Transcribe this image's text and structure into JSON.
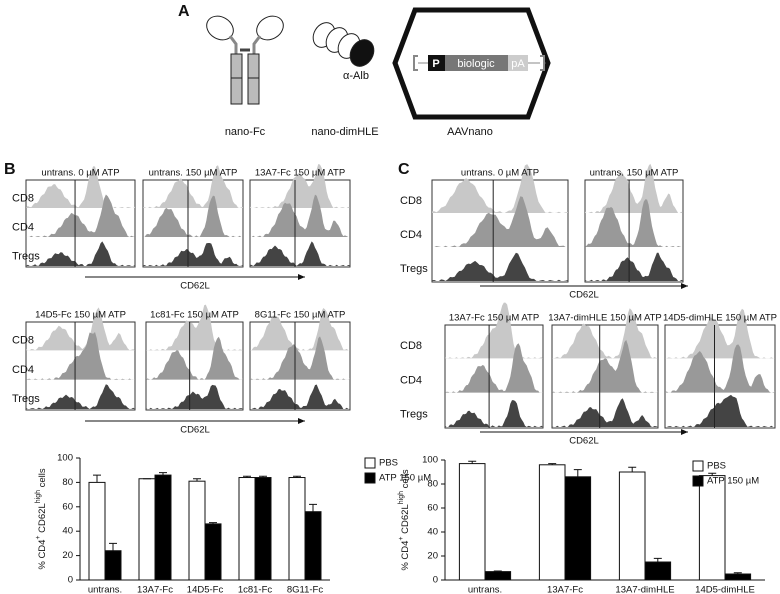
{
  "figure": {
    "panel_a": {
      "label": "A",
      "constructs": [
        "nano-Fc",
        "nano-dimHLE",
        "AAVnano"
      ],
      "alb": "α-Alb",
      "cassette": [
        "P",
        "biologic",
        "pA"
      ]
    },
    "panel_b": {
      "label": "B",
      "rows": [
        "CD8",
        "CD4",
        "Tregs"
      ],
      "marker": "CD62L",
      "histograms": [
        "untrans. 0 µM ATP",
        "untrans. 150 µM ATP",
        "13A7-Fc 150 µM ATP",
        "14D5-Fc 150 µM ATP",
        "1c81-Fc 150 µM ATP",
        "8G11-Fc 150 µM ATP"
      ]
    },
    "panel_c": {
      "label": "C",
      "rows": [
        "CD8",
        "CD4",
        "Tregs"
      ],
      "marker": "CD62L",
      "histograms": [
        "untrans. 0 µM ATP",
        "untrans. 150 µM ATP",
        "13A7-Fc 150 µM ATP",
        "13A7-dimHLE 150 µM ATP",
        "14D5-dimHLE 150 µM ATP"
      ]
    }
  },
  "chart_data": [
    {
      "type": "bar",
      "ylabel": [
        "% CD4",
        "+",
        " CD62L",
        "high",
        " cells"
      ],
      "categories": [
        "untrans.",
        "13A7-Fc",
        "14D5-Fc",
        "1c81-Fc",
        "8G11-Fc"
      ],
      "series": [
        {
          "name": "PBS",
          "color": "#ffffff",
          "values": [
            80,
            83,
            81,
            84,
            84
          ],
          "errors": [
            6,
            0,
            2,
            1,
            1
          ]
        },
        {
          "name": "ATP 150 µM",
          "color": "#000000",
          "values": [
            24,
            86,
            46,
            84,
            56
          ],
          "errors": [
            6,
            2,
            1,
            1,
            6
          ]
        }
      ],
      "ylim": [
        0,
        100
      ],
      "yticks": [
        0,
        20,
        40,
        60,
        80,
        100
      ],
      "legend": "upper right"
    },
    {
      "type": "bar",
      "ylabel": [
        "% CD4",
        "+",
        " CD62L",
        "high",
        " cells"
      ],
      "categories": [
        "untrans.",
        "13A7-Fc",
        "13A7-dimHLE",
        "14D5-dimHLE"
      ],
      "series": [
        {
          "name": "PBS",
          "color": "#ffffff",
          "values": [
            97,
            96,
            90,
            87
          ],
          "errors": [
            2,
            1,
            4,
            2
          ]
        },
        {
          "name": "ATP 150 µM",
          "color": "#000000",
          "values": [
            7,
            86,
            15,
            5
          ],
          "errors": [
            0.5,
            6,
            3,
            1
          ]
        }
      ],
      "ylim": [
        0,
        100
      ],
      "yticks": [
        0,
        20,
        40,
        60,
        80,
        100
      ],
      "legend": "upper right"
    }
  ]
}
